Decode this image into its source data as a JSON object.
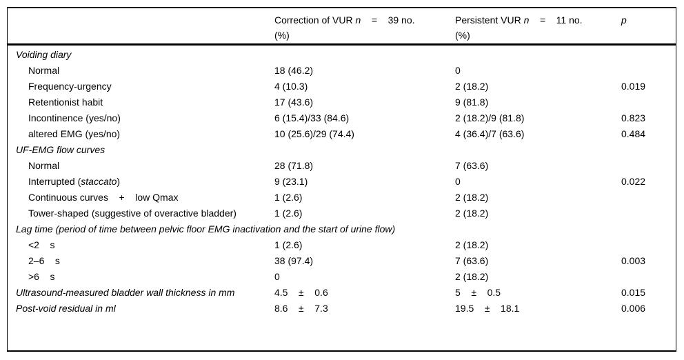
{
  "colors": {
    "background": "#ffffff",
    "text": "#000000",
    "rule": "#000000"
  },
  "table": {
    "header": {
      "col1": "",
      "col2": {
        "parts": [
          {
            "text": "Correction of VUR ",
            "italic": false
          },
          {
            "text": "n",
            "italic": true
          },
          {
            "text": "    =    39 no.",
            "italic": false
          }
        ],
        "line2": "(%)"
      },
      "col3": {
        "parts": [
          {
            "text": "Persistent VUR ",
            "italic": false
          },
          {
            "text": "n",
            "italic": true
          },
          {
            "text": "    =    11 no.",
            "italic": false
          }
        ],
        "line2": "(%)"
      },
      "col4": {
        "parts": [
          {
            "text": "p",
            "italic": true
          }
        ],
        "line2": ""
      }
    },
    "rows": [
      {
        "kind": "section",
        "label": "Voiding diary"
      },
      {
        "kind": "item",
        "label": "Normal",
        "c1": "18 (46.2)",
        "c2": "0",
        "p": ""
      },
      {
        "kind": "item",
        "label": "Frequency-urgency",
        "c1": "4 (10.3)",
        "c2": "2 (18.2)",
        "p": "0.019"
      },
      {
        "kind": "item",
        "label": "Retentionist habit",
        "c1": "17 (43.6)",
        "c2": "9 (81.8)",
        "p": ""
      },
      {
        "kind": "item",
        "label": "Incontinence (yes/no)",
        "c1": "6 (15.4)/33 (84.6)",
        "c2": "2 (18.2)/9 (81.8)",
        "p": "0.823"
      },
      {
        "kind": "item",
        "label": "altered EMG (yes/no)",
        "c1": "10 (25.6)/29 (74.4)",
        "c2": "4 (36.4)/7 (63.6)",
        "p": "0.484"
      },
      {
        "kind": "section",
        "label": "UF-EMG flow curves"
      },
      {
        "kind": "item",
        "label": "Normal",
        "c1": "28 (71.8)",
        "c2": "7 (63.6)",
        "p": ""
      },
      {
        "kind": "item",
        "label_parts": [
          {
            "text": "Interrupted (",
            "italic": false
          },
          {
            "text": "staccato",
            "italic": true
          },
          {
            "text": ")",
            "italic": false
          }
        ],
        "c1": "9 (23.1)",
        "c2": "0",
        "p": "0.022"
      },
      {
        "kind": "item",
        "label": "Continuous curves    +    low Qmax",
        "c1": "1 (2.6)",
        "c2": "2 (18.2)",
        "p": ""
      },
      {
        "kind": "item",
        "label": "Tower-shaped (suggestive of overactive bladder)",
        "c1": "1 (2.6)",
        "c2": "2 (18.2)",
        "p": ""
      },
      {
        "kind": "section",
        "label": "Lag time (period of time between pelvic floor EMG inactivation and the start of urine flow)"
      },
      {
        "kind": "item",
        "label": "<2    s",
        "c1": "1 (2.6)",
        "c2": "2 (18.2)",
        "p": ""
      },
      {
        "kind": "item",
        "label": "2–6    s",
        "c1": "38 (97.4)",
        "c2": "7 (63.6)",
        "p": "0.003"
      },
      {
        "kind": "item",
        "label": ">6    s",
        "c1": "0",
        "c2": "2 (18.2)",
        "p": ""
      },
      {
        "kind": "top",
        "label": "Ultrasound-measured bladder wall thickness in mm",
        "c1": "4.5    ±    0.6",
        "c2": "5    ±    0.5",
        "p": "0.015"
      },
      {
        "kind": "top",
        "label": "Post-void residual in ml",
        "c1": "8.6    ±    7.3",
        "c2": "19.5    ±    18.1",
        "p": "0.006"
      }
    ]
  }
}
